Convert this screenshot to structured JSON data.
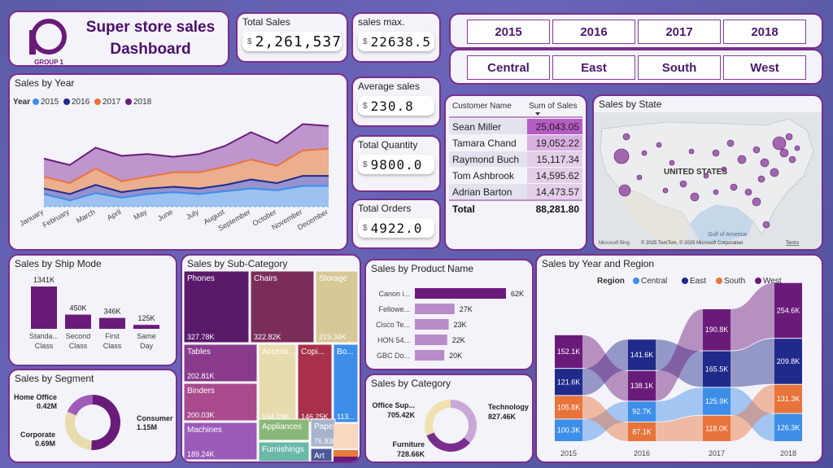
{
  "header": {
    "logo_letters": "1G",
    "logo_sub": "GROUP 1",
    "title_line1": "Super store sales",
    "title_line2": "Dashboard"
  },
  "kpis": {
    "total_sales": {
      "label": "Total Sales",
      "value": "2,261,537",
      "currency": "$"
    },
    "sales_max": {
      "label": "sales max.",
      "value": "22638.5",
      "currency": "$"
    },
    "avg_sales": {
      "label": "Average sales",
      "value": "230.8",
      "currency": "$"
    },
    "total_qty": {
      "label": "Total Quantity",
      "value": "9800.0",
      "currency": "$"
    },
    "total_orders": {
      "label": "Total Orders",
      "value": "4922.0",
      "currency": "$"
    }
  },
  "slicers": {
    "years": [
      "2015",
      "2016",
      "2017",
      "2018"
    ],
    "regions": [
      "Central",
      "East",
      "South",
      "West"
    ]
  },
  "customers_table": {
    "headers": [
      "Customer Name",
      "Sum of Sales"
    ],
    "rows": [
      {
        "name": "Sean Miller",
        "sales": "25,043.05",
        "v": 25043.05
      },
      {
        "name": "Tamara Chand",
        "sales": "19,052.22",
        "v": 19052.22
      },
      {
        "name": "Raymond Buch",
        "sales": "15,117.34",
        "v": 15117.34
      },
      {
        "name": "Tom Ashbrook",
        "sales": "14,595.62",
        "v": 14595.62
      },
      {
        "name": "Adrian Barton",
        "sales": "14,473.57",
        "v": 14473.57
      }
    ],
    "total_label": "Total",
    "total_value": "88,281.80"
  },
  "map": {
    "title": "Sales by State",
    "country_label": "UNITED STATES",
    "gulf_label": "Gulf of America",
    "bing_label": "Microsoft Bing",
    "credit": "© 2025 TomTom, © 2025 Microsoft Corporation",
    "terms": "Terms"
  },
  "colors": {
    "y2015": "#3d8ee8",
    "y2016": "#1f2a8a",
    "y2017": "#e8743b",
    "y2018": "#6a1b7a",
    "accent": "#7a2d8c"
  },
  "chart_data": [
    {
      "id": "sales_by_year",
      "type": "area",
      "title": "Sales by Year",
      "legend_title": "Year",
      "categories": [
        "January",
        "February",
        "March",
        "April",
        "May",
        "June",
        "July",
        "August",
        "September",
        "October",
        "November",
        "December"
      ],
      "series": [
        {
          "name": "2015",
          "values": [
            14,
            7,
            15,
            10,
            14,
            16,
            14,
            17,
            20,
            18,
            23,
            23
          ]
        },
        {
          "name": "2016",
          "values": [
            20,
            14,
            24,
            16,
            20,
            22,
            20,
            24,
            30,
            26,
            34,
            34
          ]
        },
        {
          "name": "2017",
          "values": [
            33,
            26,
            42,
            28,
            33,
            38,
            38,
            44,
            52,
            45,
            62,
            64
          ]
        },
        {
          "name": "2018",
          "values": [
            53,
            46,
            65,
            56,
            58,
            55,
            58,
            67,
            82,
            70,
            91,
            89
          ]
        }
      ]
    },
    {
      "id": "ship_mode",
      "type": "bar",
      "title": "Sales by Ship Mode",
      "categories": [
        "Standa... Class",
        "Second Class",
        "First Class",
        "Same Day"
      ],
      "values": [
        1341,
        450,
        346,
        125
      ],
      "labels": [
        "1341K",
        "450K",
        "346K",
        "125K"
      ]
    },
    {
      "id": "segment",
      "type": "pie",
      "title": "Sales by Segment",
      "slices": [
        {
          "name": "Consumer",
          "value": 1.15,
          "label": "1.15M",
          "color": "#6a1b7a"
        },
        {
          "name": "Corporate",
          "value": 0.69,
          "label": "0.69M",
          "color": "#e8dcae"
        },
        {
          "name": "Home Office",
          "value": 0.42,
          "label": "0.42M",
          "color": "#a05ab8"
        }
      ]
    },
    {
      "id": "sub_category",
      "type": "treemap",
      "title": "Sales by Sub-Category",
      "items": [
        {
          "name": "Phones",
          "label": "327.78K"
        },
        {
          "name": "Chairs",
          "label": "322.82K"
        },
        {
          "name": "Storage",
          "label": "219.34K"
        },
        {
          "name": "Tables",
          "label": "202.81K"
        },
        {
          "name": "Binders",
          "label": "200.03K"
        },
        {
          "name": "Machines",
          "label": "189.24K"
        },
        {
          "name": "Access...",
          "label": "164.19K"
        },
        {
          "name": "Copi...",
          "label": "146.25K"
        },
        {
          "name": "Bo...",
          "label": "113..."
        },
        {
          "name": "Appliances",
          "label": ""
        },
        {
          "name": "Paper",
          "label": "76.83K"
        },
        {
          "name": "Furnishings",
          "label": ""
        },
        {
          "name": "Art",
          "label": ""
        }
      ]
    },
    {
      "id": "product_name",
      "type": "bar",
      "title": "Sales by Product Name",
      "categories": [
        "Canon i...",
        "Fellowe...",
        "Cisco Te...",
        "HON 54...",
        "GBC Do..."
      ],
      "values": [
        62,
        27,
        23,
        22,
        20
      ],
      "labels": [
        "62K",
        "27K",
        "23K",
        "22K",
        "20K"
      ]
    },
    {
      "id": "category",
      "type": "pie",
      "title": "Sales by Category",
      "slices": [
        {
          "name": "Technology",
          "value": 827.46,
          "label": "827.46K",
          "color": "#c9a8d8"
        },
        {
          "name": "Furniture",
          "value": 728.66,
          "label": "728.66K",
          "color": "#7a2d8c"
        },
        {
          "name": "Office Sup...",
          "value": 705.42,
          "label": "705.42K",
          "color": "#efe2b0"
        }
      ]
    },
    {
      "id": "year_region",
      "type": "ribbon",
      "title": "Sales by Year and Region",
      "legend_title": "Region",
      "categories": [
        "2015",
        "2016",
        "2017",
        "2018"
      ],
      "series": [
        {
          "name": "Central",
          "values": [
            100.3,
            92.7,
            125.9,
            126.3
          ],
          "labels": [
            "100.3K",
            "92.7K",
            "125.9K",
            "126.3K"
          ]
        },
        {
          "name": "East",
          "values": [
            121.6,
            141.6,
            165.5,
            209.8
          ],
          "labels": [
            "121.6K",
            "141.6K",
            "165.5K",
            "209.8K"
          ]
        },
        {
          "name": "South",
          "values": [
            105.8,
            87.1,
            118.0,
            131.3
          ],
          "labels": [
            "105.8K",
            "87.1K",
            "118.0K",
            "131.3K"
          ]
        },
        {
          "name": "West",
          "values": [
            152.1,
            138.1,
            190.8,
            254.6
          ],
          "labels": [
            "152.1K",
            "138.1K",
            "190.8K",
            "254.6K"
          ]
        }
      ]
    }
  ]
}
